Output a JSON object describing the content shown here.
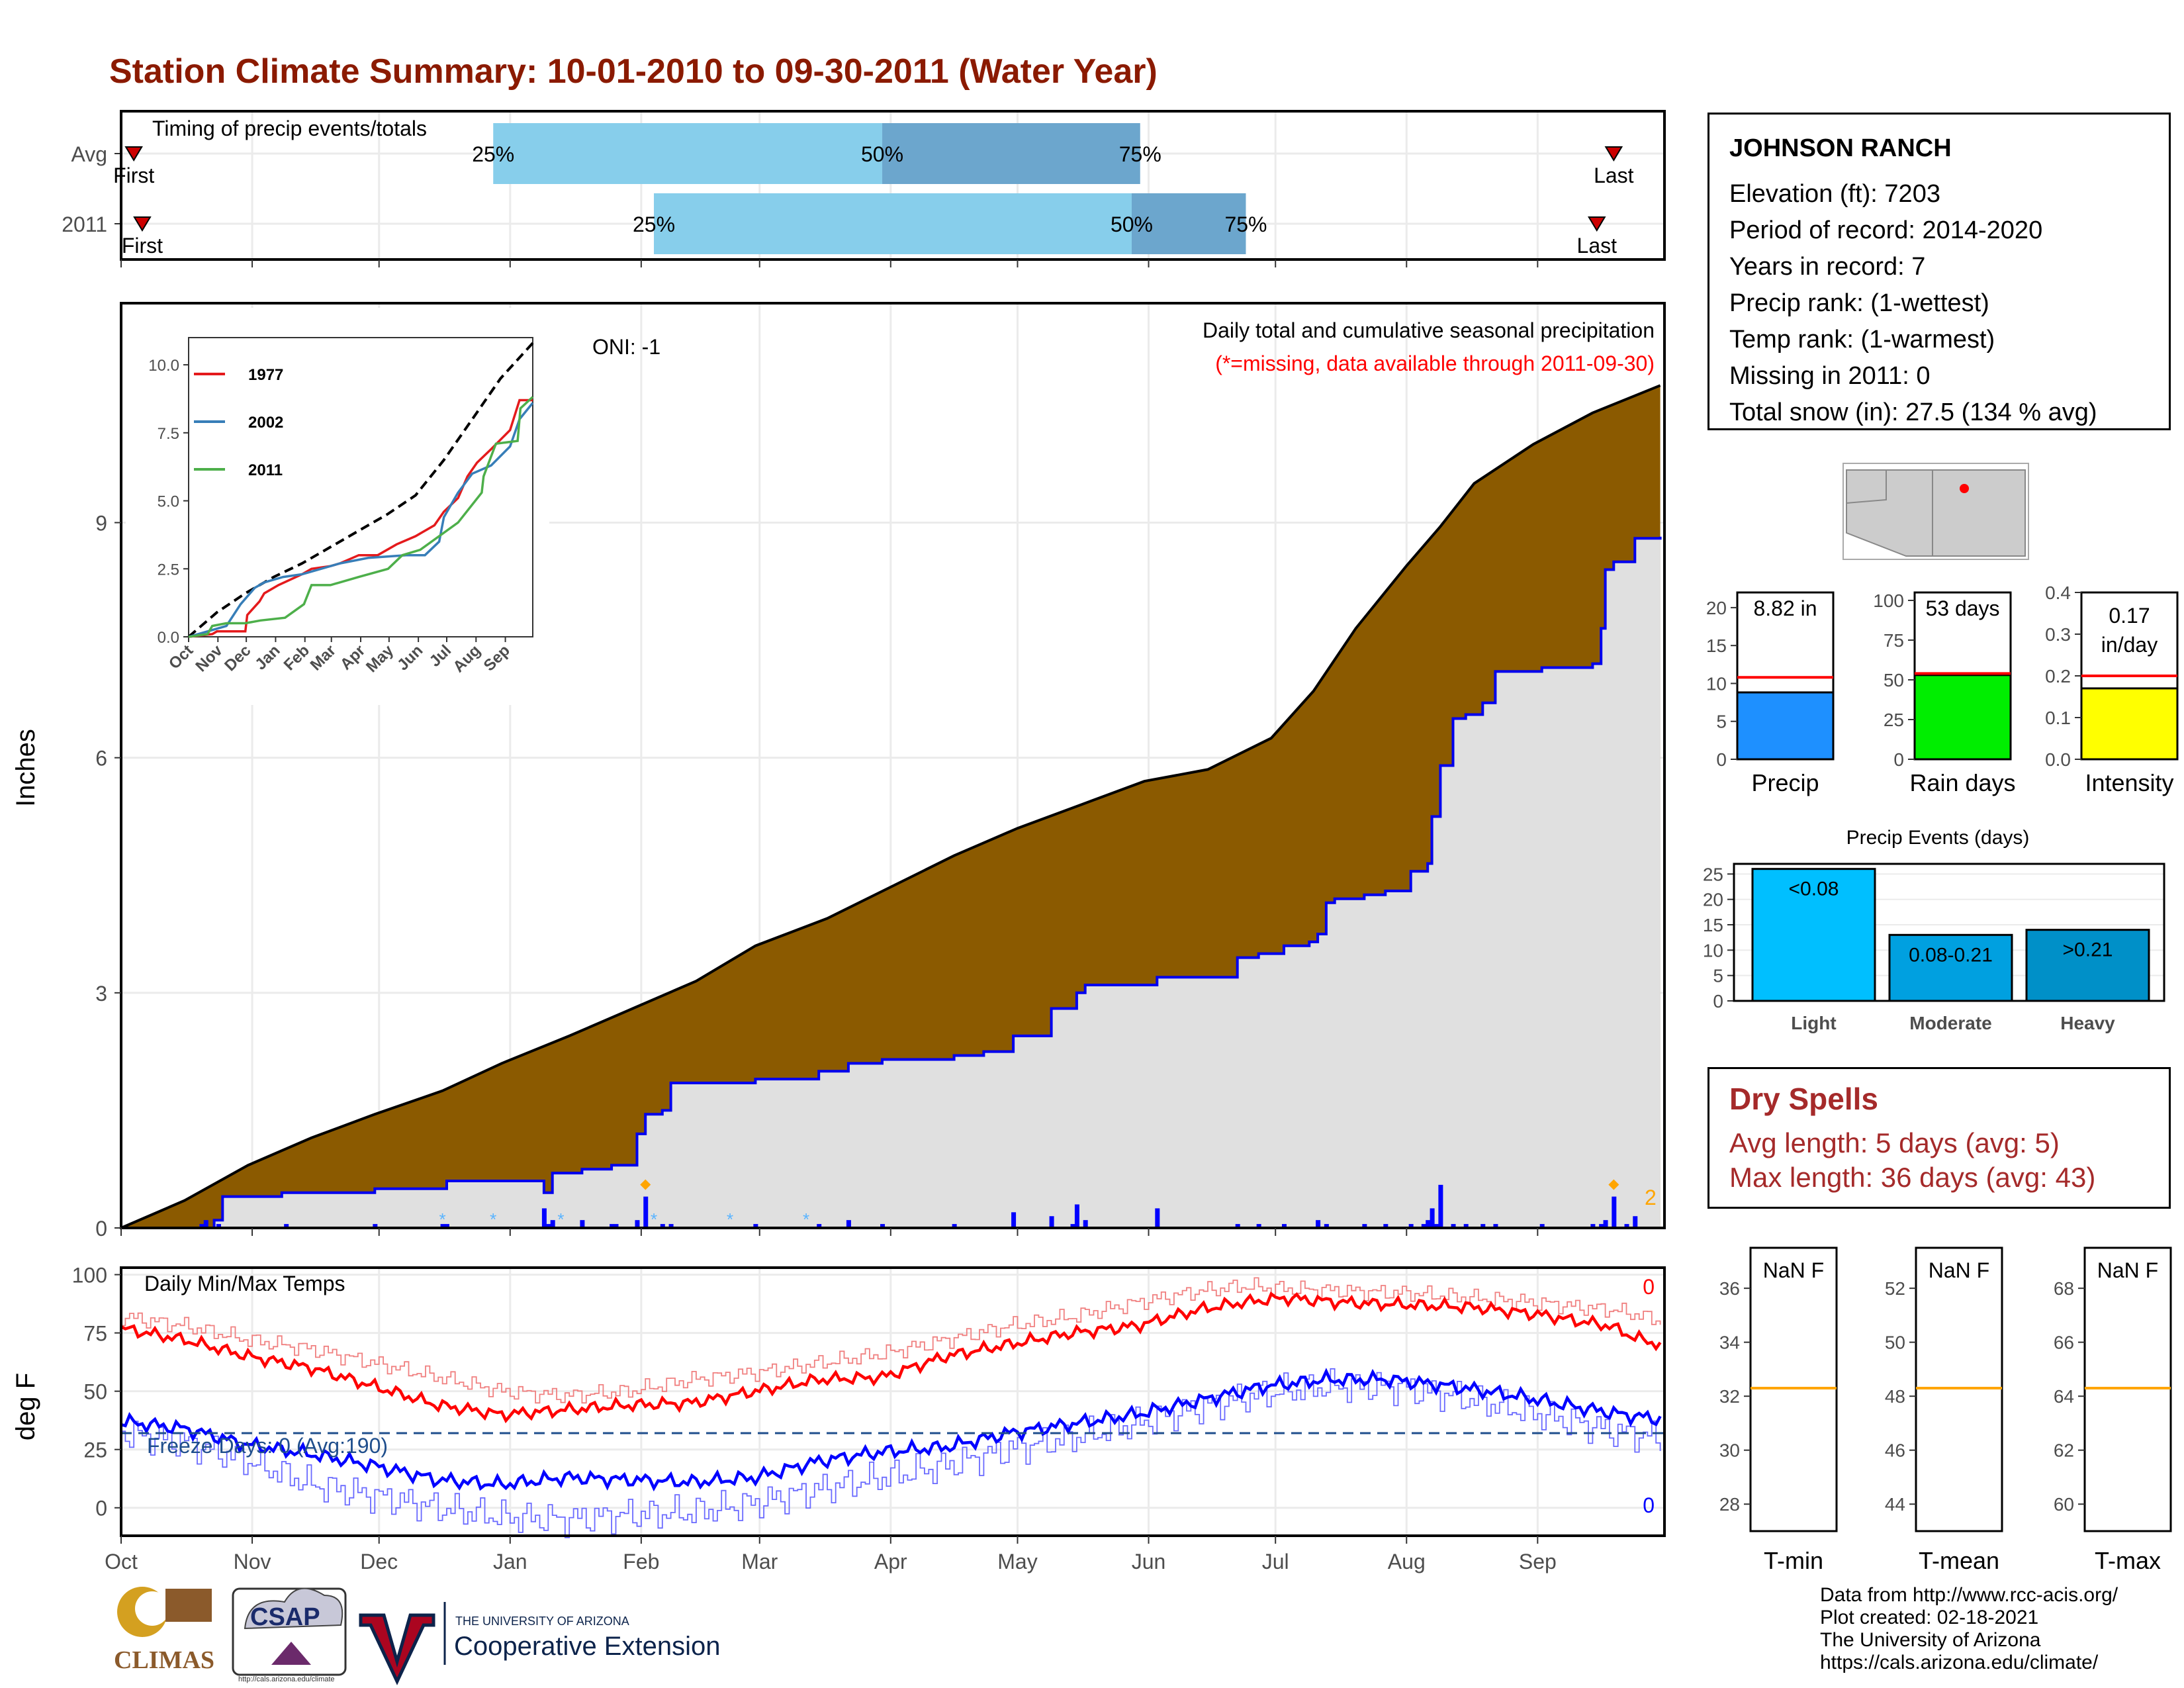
{
  "title": "Station Climate Summary: 10-01-2010 to 09-30-2011 (Water Year)",
  "colors": {
    "title": "#8b1a00",
    "precip_fill": "#8b5a00",
    "cum_line": "#0000ee",
    "grey_fill": "#e0e0e0",
    "light_blue": "#87ceeb",
    "mid_blue": "#6ca6cd",
    "red": "#ff0000",
    "blue": "#0000ff",
    "orange": "#ffa500",
    "dryspell": "#a52a2a"
  },
  "timing": {
    "caption": "Timing of precip events/totals",
    "rows": [
      {
        "label": "Avg",
        "first_label": "First",
        "last_label": "Last",
        "first_day": 3,
        "last_day": 353,
        "p25": 88,
        "p50": 180,
        "p75": 241,
        "p25_label": "25%",
        "p50_label": "50%",
        "p75_label": "75%"
      },
      {
        "label": "2011",
        "first_label": "First",
        "last_label": "Last",
        "first_day": 5,
        "last_day": 349,
        "p25": 126,
        "p50": 239,
        "p75": 266,
        "p25_label": "25%",
        "p50_label": "50%",
        "p75_label": "75%"
      }
    ]
  },
  "precip": {
    "ylabel": "Inches",
    "yticks": [
      0,
      3,
      6,
      9
    ],
    "ylim": [
      0,
      11.8
    ],
    "caption": "Daily total and cumulative seasonal precipitation",
    "missing_note": "(*=missing, data available through 2011-09-30)",
    "oni": "ONI: -1",
    "count_label": "2",
    "avg_cum": [
      [
        0,
        0
      ],
      [
        15,
        0.35
      ],
      [
        30,
        0.8
      ],
      [
        45,
        1.15
      ],
      [
        60,
        1.45
      ],
      [
        76,
        1.75
      ],
      [
        90,
        2.1
      ],
      [
        106,
        2.45
      ],
      [
        121,
        2.8
      ],
      [
        136,
        3.15
      ],
      [
        150,
        3.6
      ],
      [
        167,
        3.95
      ],
      [
        182,
        4.35
      ],
      [
        197,
        4.75
      ],
      [
        212,
        5.1
      ],
      [
        227,
        5.4
      ],
      [
        242,
        5.7
      ],
      [
        257,
        5.85
      ],
      [
        272,
        6.25
      ],
      [
        282,
        6.85
      ],
      [
        292,
        7.65
      ],
      [
        304,
        8.45
      ],
      [
        312,
        8.95
      ],
      [
        320,
        9.5
      ],
      [
        334,
        10.0
      ],
      [
        348,
        10.4
      ],
      [
        364,
        10.75
      ]
    ],
    "obs_cum": [
      [
        0,
        0
      ],
      [
        19,
        0
      ],
      [
        22,
        0.1
      ],
      [
        24,
        0.4
      ],
      [
        38,
        0.45
      ],
      [
        39,
        0.45
      ],
      [
        60,
        0.5
      ],
      [
        76,
        0.5
      ],
      [
        77,
        0.6
      ],
      [
        100,
        0.45
      ],
      [
        102,
        0.7
      ],
      [
        109,
        0.75
      ],
      [
        116,
        0.8
      ],
      [
        122,
        1.2
      ],
      [
        124,
        1.45
      ],
      [
        128,
        1.5
      ],
      [
        130,
        1.85
      ],
      [
        150,
        1.9
      ],
      [
        165,
        2.0
      ],
      [
        172,
        2.1
      ],
      [
        180,
        2.15
      ],
      [
        197,
        2.2
      ],
      [
        204,
        2.25
      ],
      [
        211,
        2.45
      ],
      [
        220,
        2.8
      ],
      [
        226,
        3.0
      ],
      [
        228,
        3.1
      ],
      [
        245,
        3.2
      ],
      [
        264,
        3.45
      ],
      [
        269,
        3.5
      ],
      [
        275,
        3.6
      ],
      [
        281,
        3.65
      ],
      [
        283,
        3.75
      ],
      [
        285,
        4.15
      ],
      [
        287,
        4.2
      ],
      [
        294,
        4.25
      ],
      [
        299,
        4.3
      ],
      [
        305,
        4.55
      ],
      [
        309,
        4.65
      ],
      [
        310,
        5.25
      ],
      [
        312,
        5.9
      ],
      [
        315,
        6.5
      ],
      [
        318,
        6.55
      ],
      [
        322,
        6.7
      ],
      [
        325,
        7.1
      ],
      [
        336,
        7.15
      ],
      [
        348,
        7.2
      ],
      [
        350,
        7.65
      ],
      [
        351,
        8.4
      ],
      [
        353,
        8.5
      ],
      [
        358,
        8.8
      ],
      [
        364,
        8.82
      ]
    ],
    "daily": [
      [
        19,
        0.05
      ],
      [
        20,
        0.1
      ],
      [
        23,
        0.05
      ],
      [
        39,
        0.05
      ],
      [
        60,
        0.05
      ],
      [
        76,
        0.05
      ],
      [
        77,
        0.05
      ],
      [
        100,
        0.25
      ],
      [
        101,
        0.05
      ],
      [
        102,
        0.1
      ],
      [
        109,
        0.1
      ],
      [
        116,
        0.05
      ],
      [
        117,
        0.05
      ],
      [
        122,
        0.1
      ],
      [
        124,
        0.4
      ],
      [
        128,
        0.05
      ],
      [
        130,
        0.05
      ],
      [
        150,
        0.05
      ],
      [
        165,
        0.05
      ],
      [
        172,
        0.1
      ],
      [
        180,
        0.05
      ],
      [
        197,
        0.05
      ],
      [
        211,
        0.2
      ],
      [
        220,
        0.15
      ],
      [
        225,
        0.05
      ],
      [
        226,
        0.3
      ],
      [
        228,
        0.1
      ],
      [
        245,
        0.25
      ],
      [
        264,
        0.05
      ],
      [
        269,
        0.05
      ],
      [
        275,
        0.05
      ],
      [
        283,
        0.1
      ],
      [
        285,
        0.05
      ],
      [
        294,
        0.05
      ],
      [
        299,
        0.05
      ],
      [
        305,
        0.05
      ],
      [
        308,
        0.05
      ],
      [
        309,
        0.1
      ],
      [
        310,
        0.25
      ],
      [
        311,
        0.05
      ],
      [
        312,
        0.55
      ],
      [
        315,
        0.05
      ],
      [
        318,
        0.05
      ],
      [
        322,
        0.05
      ],
      [
        325,
        0.05
      ],
      [
        336,
        0.05
      ],
      [
        348,
        0.05
      ],
      [
        350,
        0.05
      ],
      [
        351,
        0.1
      ],
      [
        353,
        0.4
      ],
      [
        356,
        0.05
      ],
      [
        358,
        0.15
      ]
    ],
    "snow_days": [
      76,
      88,
      104,
      126,
      144,
      162
    ]
  },
  "inset": {
    "yticks": [
      0.0,
      2.5,
      5.0,
      7.5,
      10.0
    ],
    "ytick_labels": [
      "0.0",
      "2.5",
      "5.0",
      "7.5",
      "10.0"
    ],
    "months": [
      "Oct",
      "Nov",
      "Dec",
      "Jan",
      "Feb",
      "Mar",
      "Apr",
      "May",
      "Jun",
      "Jul",
      "Aug",
      "Sep"
    ],
    "legend": [
      {
        "name": "1977",
        "color": "#e41a1c"
      },
      {
        "name": "2002",
        "color": "#377eb8"
      },
      {
        "name": "2011",
        "color": "#4daf4a"
      }
    ],
    "avg": [
      [
        0,
        0
      ],
      [
        30,
        0.9
      ],
      [
        60,
        1.6
      ],
      [
        90,
        2.2
      ],
      [
        120,
        2.7
      ],
      [
        150,
        3.3
      ],
      [
        180,
        3.9
      ],
      [
        210,
        4.5
      ],
      [
        240,
        5.2
      ],
      [
        270,
        6.5
      ],
      [
        300,
        8.0
      ],
      [
        330,
        9.5
      ],
      [
        364,
        10.8
      ]
    ],
    "y1977": [
      [
        0,
        0
      ],
      [
        25,
        0.1
      ],
      [
        30,
        0.2
      ],
      [
        40,
        0.2
      ],
      [
        60,
        0.2
      ],
      [
        62,
        0.8
      ],
      [
        75,
        1.3
      ],
      [
        80,
        1.6
      ],
      [
        95,
        1.9
      ],
      [
        120,
        2.3
      ],
      [
        130,
        2.5
      ],
      [
        150,
        2.6
      ],
      [
        160,
        2.7
      ],
      [
        180,
        3.0
      ],
      [
        200,
        3.0
      ],
      [
        220,
        3.4
      ],
      [
        240,
        3.7
      ],
      [
        260,
        4.1
      ],
      [
        270,
        4.6
      ],
      [
        285,
        5.1
      ],
      [
        295,
        5.9
      ],
      [
        305,
        6.4
      ],
      [
        320,
        6.9
      ],
      [
        340,
        7.6
      ],
      [
        350,
        8.7
      ],
      [
        364,
        8.7
      ]
    ],
    "y2002": [
      [
        0,
        0
      ],
      [
        20,
        0.2
      ],
      [
        40,
        0.4
      ],
      [
        55,
        1.2
      ],
      [
        70,
        1.8
      ],
      [
        80,
        2.0
      ],
      [
        100,
        2.2
      ],
      [
        120,
        2.3
      ],
      [
        140,
        2.5
      ],
      [
        160,
        2.7
      ],
      [
        190,
        2.9
      ],
      [
        230,
        3.0
      ],
      [
        250,
        3.0
      ],
      [
        265,
        3.5
      ],
      [
        270,
        4.4
      ],
      [
        285,
        5.3
      ],
      [
        300,
        6.0
      ],
      [
        320,
        6.3
      ],
      [
        340,
        7.0
      ],
      [
        350,
        8.0
      ],
      [
        364,
        8.6
      ]
    ],
    "y2011": [
      [
        0,
        0
      ],
      [
        20,
        0.1
      ],
      [
        25,
        0.4
      ],
      [
        40,
        0.5
      ],
      [
        60,
        0.5
      ],
      [
        76,
        0.6
      ],
      [
        102,
        0.7
      ],
      [
        122,
        1.2
      ],
      [
        130,
        1.9
      ],
      [
        150,
        1.9
      ],
      [
        180,
        2.2
      ],
      [
        211,
        2.5
      ],
      [
        226,
        3.0
      ],
      [
        245,
        3.2
      ],
      [
        285,
        4.2
      ],
      [
        310,
        5.3
      ],
      [
        312,
        5.9
      ],
      [
        325,
        7.1
      ],
      [
        348,
        7.2
      ],
      [
        351,
        8.4
      ],
      [
        364,
        8.82
      ]
    ]
  },
  "temps": {
    "ylabel": "deg F",
    "yticks": [
      0,
      25,
      50,
      75,
      100
    ],
    "ylim": [
      -12,
      103
    ],
    "caption": "Daily Min/Max Temps",
    "freeze_label": "Freeze Days: 0 (Avg:190)",
    "freeze_line": 32,
    "max_count": "0",
    "min_count": "0",
    "max_obs": [
      [
        0,
        77
      ],
      [
        15,
        72
      ],
      [
        30,
        65
      ],
      [
        45,
        60
      ],
      [
        60,
        52
      ],
      [
        75,
        44
      ],
      [
        90,
        40
      ],
      [
        105,
        42
      ],
      [
        120,
        44
      ],
      [
        135,
        45
      ],
      [
        150,
        50
      ],
      [
        165,
        55
      ],
      [
        180,
        56
      ],
      [
        195,
        65
      ],
      [
        210,
        70
      ],
      [
        225,
        75
      ],
      [
        240,
        78
      ],
      [
        255,
        85
      ],
      [
        265,
        88
      ],
      [
        275,
        90
      ],
      [
        290,
        88
      ],
      [
        305,
        87
      ],
      [
        320,
        86
      ],
      [
        335,
        83
      ],
      [
        345,
        80
      ],
      [
        352,
        78
      ],
      [
        358,
        73
      ],
      [
        364,
        70
      ]
    ],
    "max_avg": [
      [
        0,
        82
      ],
      [
        15,
        78
      ],
      [
        30,
        72
      ],
      [
        45,
        68
      ],
      [
        60,
        62
      ],
      [
        75,
        56
      ],
      [
        90,
        50
      ],
      [
        105,
        48
      ],
      [
        120,
        50
      ],
      [
        135,
        55
      ],
      [
        150,
        58
      ],
      [
        165,
        62
      ],
      [
        180,
        66
      ],
      [
        195,
        72
      ],
      [
        210,
        78
      ],
      [
        225,
        82
      ],
      [
        240,
        88
      ],
      [
        255,
        93
      ],
      [
        265,
        95
      ],
      [
        275,
        94
      ],
      [
        290,
        93
      ],
      [
        305,
        92
      ],
      [
        320,
        90
      ],
      [
        335,
        88
      ],
      [
        345,
        86
      ],
      [
        352,
        85
      ],
      [
        358,
        83
      ],
      [
        364,
        80
      ]
    ],
    "min_obs": [
      [
        0,
        37
      ],
      [
        15,
        34
      ],
      [
        30,
        27
      ],
      [
        45,
        23
      ],
      [
        60,
        18
      ],
      [
        75,
        12
      ],
      [
        90,
        10
      ],
      [
        105,
        13
      ],
      [
        120,
        12
      ],
      [
        135,
        11
      ],
      [
        150,
        13
      ],
      [
        165,
        20
      ],
      [
        180,
        24
      ],
      [
        195,
        26
      ],
      [
        210,
        32
      ],
      [
        225,
        36
      ],
      [
        240,
        40
      ],
      [
        255,
        46
      ],
      [
        270,
        52
      ],
      [
        285,
        55
      ],
      [
        300,
        55
      ],
      [
        315,
        52
      ],
      [
        330,
        48
      ],
      [
        345,
        43
      ],
      [
        355,
        40
      ],
      [
        364,
        38
      ]
    ],
    "min_avg": [
      [
        0,
        32
      ],
      [
        15,
        28
      ],
      [
        30,
        20
      ],
      [
        45,
        10
      ],
      [
        60,
        5
      ],
      [
        75,
        0
      ],
      [
        90,
        -4
      ],
      [
        105,
        -5
      ],
      [
        120,
        -3
      ],
      [
        135,
        -2
      ],
      [
        150,
        2
      ],
      [
        165,
        8
      ],
      [
        180,
        13
      ],
      [
        195,
        18
      ],
      [
        210,
        25
      ],
      [
        225,
        30
      ],
      [
        240,
        36
      ],
      [
        255,
        43
      ],
      [
        270,
        49
      ],
      [
        285,
        52
      ],
      [
        300,
        52
      ],
      [
        315,
        48
      ],
      [
        330,
        42
      ],
      [
        345,
        36
      ],
      [
        355,
        32
      ],
      [
        364,
        30
      ]
    ]
  },
  "month_labels": [
    "Oct",
    "Nov",
    "Dec",
    "Jan",
    "Feb",
    "Mar",
    "Apr",
    "May",
    "Jun",
    "Jul",
    "Aug",
    "Sep"
  ],
  "month_starts": [
    0,
    31,
    61,
    92,
    123,
    151,
    182,
    212,
    243,
    273,
    304,
    335
  ],
  "station": {
    "name": "JOHNSON RANCH",
    "elevation": "Elevation (ft): 7203",
    "period": "Period of record: 2014-2020",
    "years": "Years in record: 7",
    "precip_rank": "Precip rank:  (1-wettest)",
    "temp_rank": "Temp rank:  (1-warmest)",
    "missing": "Missing in 2011: 0",
    "snow": "Total snow (in): 27.5 (134 % avg)"
  },
  "summary_bars": [
    {
      "label": "Precip",
      "value": 8.82,
      "value_label": "8.82 in",
      "avg": 10.8,
      "ymax": 22,
      "yticks": [
        0,
        5,
        10,
        15,
        20
      ],
      "ytick_labels": [
        "0",
        "5",
        "10",
        "15",
        "20"
      ],
      "color": "#1e90ff"
    },
    {
      "label": "Rain days",
      "value": 53,
      "value_label": "53 days",
      "avg": 54,
      "ymax": 105,
      "yticks": [
        0,
        25,
        50,
        75,
        100
      ],
      "ytick_labels": [
        "0",
        "25",
        "50",
        "75",
        "100"
      ],
      "color": "#00ee00"
    },
    {
      "label": "Intensity",
      "value": 0.17,
      "value_label": "0.17 in/day",
      "value_line1": "0.17",
      "value_line2": "in/day",
      "avg": 0.2,
      "ymax": 0.4,
      "yticks": [
        0.0,
        0.1,
        0.2,
        0.3,
        0.4
      ],
      "ytick_labels": [
        "0.0",
        "0.1",
        "0.2",
        "0.3",
        "0.4"
      ],
      "color": "#ffff00"
    }
  ],
  "events": {
    "title": "Precip Events (days)",
    "yticks": [
      0,
      5,
      10,
      15,
      20,
      25
    ],
    "ymax": 27,
    "bars": [
      {
        "label": "Light",
        "range": "<0.08",
        "value": 26,
        "color": "#00bfff"
      },
      {
        "label": "Moderate",
        "range": "0.08-0.21",
        "value": 13,
        "color": "#00a0e0"
      },
      {
        "label": "Heavy",
        "range": ">0.21",
        "value": 14,
        "color": "#0090c8"
      }
    ]
  },
  "dry_spells": {
    "title": "Dry Spells",
    "avg_length": "Avg length: 5 days (avg: 5)",
    "max_length": "Max length: 36 days (avg: 43)"
  },
  "temp_boxes": [
    {
      "label": "T-min",
      "value_label": "NaN F",
      "yticks": [
        28,
        30,
        32,
        34,
        36
      ],
      "ymin": 27,
      "ymax": 37.5,
      "line": 32.3
    },
    {
      "label": "T-mean",
      "value_label": "NaN F",
      "yticks": [
        44,
        46,
        48,
        50,
        52
      ],
      "ymin": 43,
      "ymax": 53.5,
      "line": 48.3
    },
    {
      "label": "T-max",
      "value_label": "NaN F",
      "yticks": [
        60,
        62,
        64,
        66,
        68
      ],
      "ymin": 59,
      "ymax": 69.5,
      "line": 64.3
    }
  ],
  "credits": [
    "Data from http://www.rcc-acis.org/",
    "Plot created: 02-18-2021",
    "The University of Arizona",
    "https://cals.arizona.edu/climate/"
  ],
  "logos": {
    "climas": "CLIMAS",
    "csap": "CSAP",
    "csap_url": "http://cals.arizona.edu/climate",
    "ua_small": "THE UNIVERSITY OF ARIZONA",
    "ua_big": "Cooperative Extension"
  }
}
